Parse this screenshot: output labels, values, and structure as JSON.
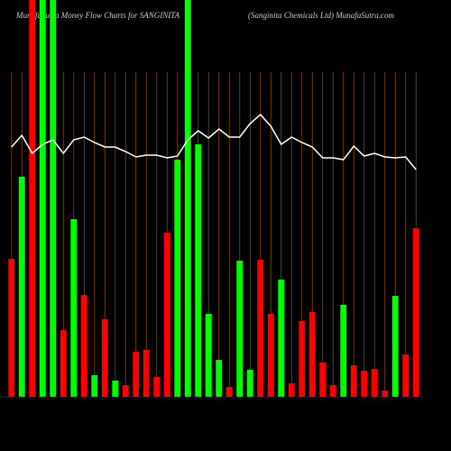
{
  "chart_data": {
    "type": "bar",
    "title": "MunafaSutra  Money Flow  Charts for SANGINITA",
    "subtitle": "(Sanginita Chemicals Ltd) MunafaSutra.com",
    "categories": [
      null,
      null,
      null,
      null,
      null,
      null,
      null,
      null,
      null,
      null,
      null,
      null,
      null,
      null,
      null,
      null,
      null,
      null,
      null,
      null,
      null,
      null,
      null,
      null,
      null,
      null,
      null,
      null,
      null,
      null,
      null,
      null,
      null,
      null,
      null,
      null,
      null,
      null,
      null,
      null
    ],
    "values": [
      153,
      244,
      440,
      440,
      440,
      74,
      197,
      113,
      24,
      86,
      18,
      13,
      50,
      52,
      22,
      182,
      263,
      440,
      280,
      92,
      41,
      11,
      151,
      30,
      152,
      92,
      130,
      15,
      84,
      94,
      38,
      13,
      102,
      35,
      29,
      31,
      7,
      112,
      47,
      187
    ],
    "bar_colors": [
      "#f00",
      "#0f0",
      "#f00",
      "#0f0",
      "#0f0",
      "#f00",
      "#0f0",
      "#f00",
      "#0f0",
      "#f00",
      "#0f0",
      "#f00",
      "#f00",
      "#f00",
      "#f00",
      "#f00",
      "#0f0",
      "#0f0",
      "#0f0",
      "#0f0",
      "#0f0",
      "#f00",
      "#0f0",
      "#0f0",
      "#f00",
      "#f00",
      "#0f0",
      "#f00",
      "#f00",
      "#f00",
      "#f00",
      "#f00",
      "#0f0",
      "#f00",
      "#f00",
      "#f00",
      "#f00",
      "#0f0",
      "#f00",
      "#f00"
    ],
    "line": {
      "color": "#fff",
      "values": [
        277,
        290,
        270,
        280,
        285,
        270,
        285,
        288,
        282,
        277,
        277,
        272,
        266,
        268,
        268,
        265,
        267,
        285,
        295,
        287,
        297,
        288,
        288,
        303,
        313,
        300,
        280,
        288,
        282,
        277,
        265,
        265,
        263,
        278,
        267,
        270,
        266,
        265,
        266,
        252
      ]
    },
    "ylim": [
      0,
      440
    ]
  }
}
